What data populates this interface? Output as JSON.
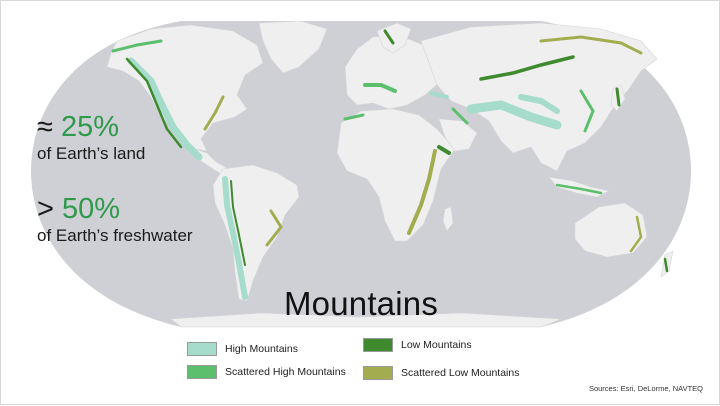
{
  "stats": [
    {
      "symbol": "≈",
      "value": "25%",
      "label": "of Earth’s land"
    },
    {
      "symbol": ">",
      "value": "50%",
      "label": "of Earth’s freshwater"
    }
  ],
  "title": "Mountains",
  "legend": [
    {
      "label": "High Mountains",
      "color": "#a6dccb"
    },
    {
      "label": "Scattered High Mountains",
      "color": "#5cbf6d"
    },
    {
      "label": "Low Mountains",
      "color": "#3f8a2f"
    },
    {
      "label": "Scattered Low Mountains",
      "color": "#a3ad4f"
    }
  ],
  "sources": "Sources: Esri, DeLorme, NAVTEQ",
  "colors": {
    "ocean": "#cfd0d6",
    "land": "#eeeeee",
    "accent_green": "#2e9a4a"
  }
}
